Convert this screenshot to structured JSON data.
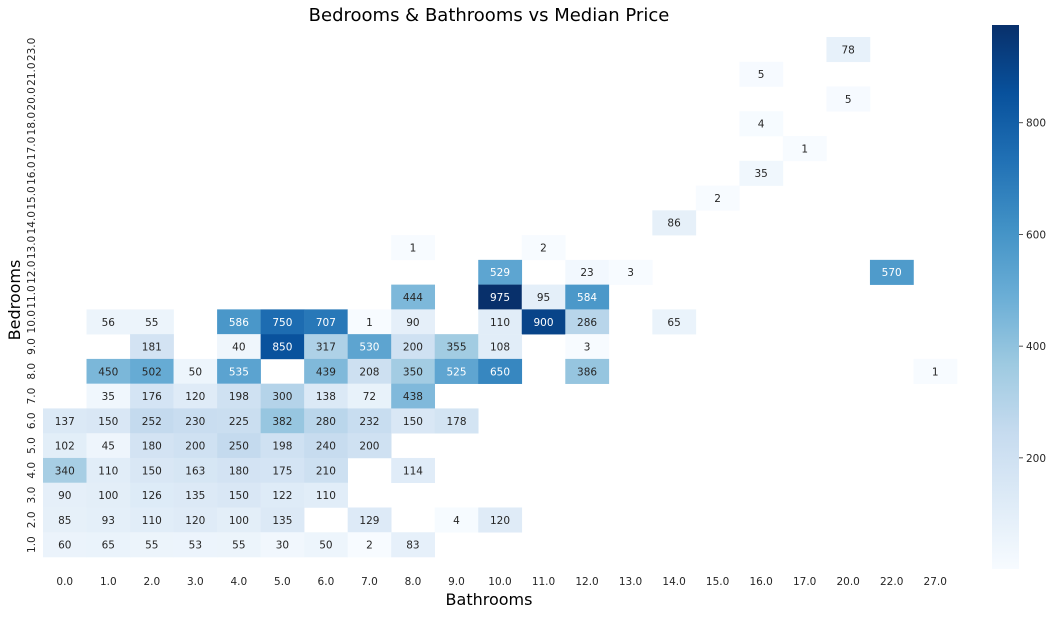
{
  "chart_data": {
    "type": "heatmap",
    "title": "Bedrooms & Bathrooms vs Median Price",
    "xlabel": "Bathrooms",
    "ylabel": "Bedrooms",
    "x_categories": [
      "0.0",
      "1.0",
      "2.0",
      "3.0",
      "4.0",
      "5.0",
      "6.0",
      "7.0",
      "8.0",
      "9.0",
      "10.0",
      "11.0",
      "12.0",
      "13.0",
      "14.0",
      "15.0",
      "16.0",
      "17.0",
      "20.0",
      "22.0",
      "27.0"
    ],
    "y_categories": [
      "23.0",
      "21.0",
      "20.0",
      "18.0",
      "17.0",
      "16.0",
      "15.0",
      "14.0",
      "13.0",
      "12.0",
      "11.0",
      "10.0",
      "9.0",
      "8.0",
      "7.0",
      "6.0",
      "5.0",
      "4.0",
      "3.0",
      "2.0",
      "1.0"
    ],
    "cells": [
      {
        "x": "20.0",
        "y": "23.0",
        "value": 78
      },
      {
        "x": "16.0",
        "y": "21.0",
        "value": 5
      },
      {
        "x": "20.0",
        "y": "20.0",
        "value": 5
      },
      {
        "x": "16.0",
        "y": "18.0",
        "value": 4
      },
      {
        "x": "17.0",
        "y": "17.0",
        "value": 1
      },
      {
        "x": "16.0",
        "y": "16.0",
        "value": 35
      },
      {
        "x": "15.0",
        "y": "15.0",
        "value": 2
      },
      {
        "x": "14.0",
        "y": "14.0",
        "value": 86
      },
      {
        "x": "8.0",
        "y": "13.0",
        "value": 1
      },
      {
        "x": "11.0",
        "y": "13.0",
        "value": 2
      },
      {
        "x": "10.0",
        "y": "12.0",
        "value": 529
      },
      {
        "x": "12.0",
        "y": "12.0",
        "value": 23
      },
      {
        "x": "13.0",
        "y": "12.0",
        "value": 3
      },
      {
        "x": "22.0",
        "y": "12.0",
        "value": 570
      },
      {
        "x": "8.0",
        "y": "11.0",
        "value": 444
      },
      {
        "x": "10.0",
        "y": "11.0",
        "value": 975
      },
      {
        "x": "11.0",
        "y": "11.0",
        "value": 95
      },
      {
        "x": "12.0",
        "y": "11.0",
        "value": 584
      },
      {
        "x": "1.0",
        "y": "10.0",
        "value": 56
      },
      {
        "x": "2.0",
        "y": "10.0",
        "value": 55
      },
      {
        "x": "4.0",
        "y": "10.0",
        "value": 586
      },
      {
        "x": "5.0",
        "y": "10.0",
        "value": 750
      },
      {
        "x": "6.0",
        "y": "10.0",
        "value": 707
      },
      {
        "x": "7.0",
        "y": "10.0",
        "value": 1
      },
      {
        "x": "8.0",
        "y": "10.0",
        "value": 90
      },
      {
        "x": "10.0",
        "y": "10.0",
        "value": 110
      },
      {
        "x": "11.0",
        "y": "10.0",
        "value": 900
      },
      {
        "x": "12.0",
        "y": "10.0",
        "value": 286
      },
      {
        "x": "14.0",
        "y": "10.0",
        "value": 65
      },
      {
        "x": "2.0",
        "y": "9.0",
        "value": 181
      },
      {
        "x": "4.0",
        "y": "9.0",
        "value": 40
      },
      {
        "x": "5.0",
        "y": "9.0",
        "value": 850
      },
      {
        "x": "6.0",
        "y": "9.0",
        "value": 317
      },
      {
        "x": "7.0",
        "y": "9.0",
        "value": 530
      },
      {
        "x": "8.0",
        "y": "9.0",
        "value": 200
      },
      {
        "x": "9.0",
        "y": "9.0",
        "value": 355
      },
      {
        "x": "10.0",
        "y": "9.0",
        "value": 108
      },
      {
        "x": "12.0",
        "y": "9.0",
        "value": 3
      },
      {
        "x": "1.0",
        "y": "8.0",
        "value": 450
      },
      {
        "x": "2.0",
        "y": "8.0",
        "value": 502
      },
      {
        "x": "3.0",
        "y": "8.0",
        "value": 50
      },
      {
        "x": "4.0",
        "y": "8.0",
        "value": 535
      },
      {
        "x": "6.0",
        "y": "8.0",
        "value": 439
      },
      {
        "x": "7.0",
        "y": "8.0",
        "value": 208
      },
      {
        "x": "8.0",
        "y": "8.0",
        "value": 350
      },
      {
        "x": "9.0",
        "y": "8.0",
        "value": 525
      },
      {
        "x": "10.0",
        "y": "8.0",
        "value": 650
      },
      {
        "x": "12.0",
        "y": "8.0",
        "value": 386
      },
      {
        "x": "27.0",
        "y": "8.0",
        "value": 1
      },
      {
        "x": "1.0",
        "y": "7.0",
        "value": 35
      },
      {
        "x": "2.0",
        "y": "7.0",
        "value": 176
      },
      {
        "x": "3.0",
        "y": "7.0",
        "value": 120
      },
      {
        "x": "4.0",
        "y": "7.0",
        "value": 198
      },
      {
        "x": "5.0",
        "y": "7.0",
        "value": 300
      },
      {
        "x": "6.0",
        "y": "7.0",
        "value": 138
      },
      {
        "x": "7.0",
        "y": "7.0",
        "value": 72
      },
      {
        "x": "8.0",
        "y": "7.0",
        "value": 438
      },
      {
        "x": "0.0",
        "y": "6.0",
        "value": 137
      },
      {
        "x": "1.0",
        "y": "6.0",
        "value": 150
      },
      {
        "x": "2.0",
        "y": "6.0",
        "value": 252
      },
      {
        "x": "3.0",
        "y": "6.0",
        "value": 230
      },
      {
        "x": "4.0",
        "y": "6.0",
        "value": 225
      },
      {
        "x": "5.0",
        "y": "6.0",
        "value": 382
      },
      {
        "x": "6.0",
        "y": "6.0",
        "value": 280
      },
      {
        "x": "7.0",
        "y": "6.0",
        "value": 232
      },
      {
        "x": "8.0",
        "y": "6.0",
        "value": 150
      },
      {
        "x": "9.0",
        "y": "6.0",
        "value": 178
      },
      {
        "x": "0.0",
        "y": "5.0",
        "value": 102
      },
      {
        "x": "1.0",
        "y": "5.0",
        "value": 45
      },
      {
        "x": "2.0",
        "y": "5.0",
        "value": 180
      },
      {
        "x": "3.0",
        "y": "5.0",
        "value": 200
      },
      {
        "x": "4.0",
        "y": "5.0",
        "value": 250
      },
      {
        "x": "5.0",
        "y": "5.0",
        "value": 198
      },
      {
        "x": "6.0",
        "y": "5.0",
        "value": 240
      },
      {
        "x": "7.0",
        "y": "5.0",
        "value": 200
      },
      {
        "x": "0.0",
        "y": "4.0",
        "value": 340
      },
      {
        "x": "1.0",
        "y": "4.0",
        "value": 110
      },
      {
        "x": "2.0",
        "y": "4.0",
        "value": 150
      },
      {
        "x": "3.0",
        "y": "4.0",
        "value": 163
      },
      {
        "x": "4.0",
        "y": "4.0",
        "value": 180
      },
      {
        "x": "5.0",
        "y": "4.0",
        "value": 175
      },
      {
        "x": "6.0",
        "y": "4.0",
        "value": 210
      },
      {
        "x": "8.0",
        "y": "4.0",
        "value": 114
      },
      {
        "x": "0.0",
        "y": "3.0",
        "value": 90
      },
      {
        "x": "1.0",
        "y": "3.0",
        "value": 100
      },
      {
        "x": "2.0",
        "y": "3.0",
        "value": 126
      },
      {
        "x": "3.0",
        "y": "3.0",
        "value": 135
      },
      {
        "x": "4.0",
        "y": "3.0",
        "value": 150
      },
      {
        "x": "5.0",
        "y": "3.0",
        "value": 122
      },
      {
        "x": "6.0",
        "y": "3.0",
        "value": 110
      },
      {
        "x": "0.0",
        "y": "2.0",
        "value": 85
      },
      {
        "x": "1.0",
        "y": "2.0",
        "value": 93
      },
      {
        "x": "2.0",
        "y": "2.0",
        "value": 110
      },
      {
        "x": "3.0",
        "y": "2.0",
        "value": 120
      },
      {
        "x": "4.0",
        "y": "2.0",
        "value": 100
      },
      {
        "x": "5.0",
        "y": "2.0",
        "value": 135
      },
      {
        "x": "7.0",
        "y": "2.0",
        "value": 129
      },
      {
        "x": "9.0",
        "y": "2.0",
        "value": 4
      },
      {
        "x": "10.0",
        "y": "2.0",
        "value": 120
      },
      {
        "x": "0.0",
        "y": "1.0",
        "value": 60
      },
      {
        "x": "1.0",
        "y": "1.0",
        "value": 65
      },
      {
        "x": "2.0",
        "y": "1.0",
        "value": 55
      },
      {
        "x": "3.0",
        "y": "1.0",
        "value": 53
      },
      {
        "x": "4.0",
        "y": "1.0",
        "value": 55
      },
      {
        "x": "5.0",
        "y": "1.0",
        "value": 30
      },
      {
        "x": "6.0",
        "y": "1.0",
        "value": 50
      },
      {
        "x": "7.0",
        "y": "1.0",
        "value": 2
      },
      {
        "x": "8.0",
        "y": "1.0",
        "value": 83
      }
    ],
    "colorbar": {
      "colormap": "Blues",
      "vmin": 1,
      "vmax": 975,
      "ticks": [
        200,
        400,
        600,
        800
      ]
    },
    "grid": false
  }
}
